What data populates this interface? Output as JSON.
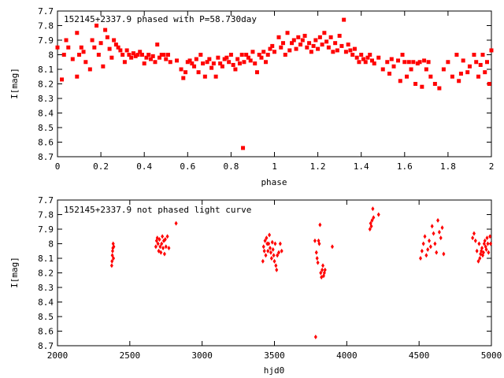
{
  "chart_data": [
    {
      "type": "scatter",
      "title": "152145+2337.9 phased with P=58.730day",
      "xlabel": "phase",
      "ylabel": "I[mag]",
      "xlim": [
        0,
        2
      ],
      "ylim": [
        8.7,
        7.7
      ],
      "y_inverted": true,
      "grid": false,
      "marker_color": "#ff0000",
      "xticks": [
        "0",
        "0.2",
        "0.4",
        "0.6",
        "0.8",
        "1",
        "1.2",
        "1.4",
        "1.6",
        "1.8",
        "2"
      ],
      "yticks": [
        "7.7",
        "7.8",
        "7.9",
        "8",
        "8.1",
        "8.2",
        "8.3",
        "8.4",
        "8.5",
        "8.6",
        "8.7"
      ],
      "xtick_values": [
        0,
        0.2,
        0.4,
        0.6,
        0.8,
        1,
        1.2,
        1.4,
        1.6,
        1.8,
        2
      ],
      "ytick_values": [
        7.7,
        7.8,
        7.9,
        8,
        8.1,
        8.2,
        8.3,
        8.4,
        8.5,
        8.6,
        8.7
      ],
      "x": [
        0.0,
        0.02,
        0.03,
        0.04,
        0.05,
        0.07,
        0.09,
        0.09,
        0.1,
        0.11,
        0.12,
        0.13,
        0.15,
        0.16,
        0.17,
        0.18,
        0.19,
        0.2,
        0.21,
        0.22,
        0.23,
        0.24,
        0.25,
        0.26,
        0.27,
        0.28,
        0.29,
        0.3,
        0.31,
        0.32,
        0.33,
        0.34,
        0.35,
        0.36,
        0.37,
        0.38,
        0.39,
        0.4,
        0.41,
        0.42,
        0.43,
        0.44,
        0.45,
        0.46,
        0.47,
        0.48,
        0.49,
        0.5,
        0.51,
        0.52,
        0.55,
        0.57,
        0.58,
        0.59,
        0.6,
        0.61,
        0.62,
        0.63,
        0.64,
        0.65,
        0.66,
        0.67,
        0.68,
        0.69,
        0.7,
        0.71,
        0.72,
        0.73,
        0.74,
        0.75,
        0.76,
        0.77,
        0.78,
        0.79,
        0.8,
        0.81,
        0.82,
        0.83,
        0.84,
        0.85,
        0.855,
        0.86,
        0.87,
        0.88,
        0.89,
        0.9,
        0.91,
        0.92,
        0.93,
        0.94,
        0.95,
        0.96,
        0.97,
        0.98,
        0.99,
        1.0,
        1.02,
        1.03,
        1.04,
        1.05,
        1.06,
        1.07,
        1.08,
        1.09,
        1.1,
        1.11,
        1.12,
        1.13,
        1.14,
        1.15,
        1.16,
        1.17,
        1.18,
        1.19,
        1.2,
        1.21,
        1.22,
        1.23,
        1.24,
        1.25,
        1.26,
        1.27,
        1.28,
        1.29,
        1.3,
        1.31,
        1.32,
        1.33,
        1.34,
        1.35,
        1.36,
        1.37,
        1.38,
        1.39,
        1.4,
        1.41,
        1.42,
        1.43,
        1.44,
        1.45,
        1.46,
        1.48,
        1.5,
        1.52,
        1.53,
        1.54,
        1.55,
        1.57,
        1.58,
        1.59,
        1.6,
        1.61,
        1.62,
        1.63,
        1.64,
        1.65,
        1.66,
        1.67,
        1.68,
        1.69,
        1.7,
        1.71,
        1.72,
        1.74,
        1.76,
        1.78,
        1.8,
        1.82,
        1.84,
        1.85,
        1.86,
        1.87,
        1.89,
        1.9,
        1.92,
        1.93,
        1.94,
        1.95,
        1.96,
        1.97,
        1.98,
        1.99,
        2.0
      ],
      "y": [
        7.95,
        8.17,
        8.0,
        7.9,
        7.95,
        8.03,
        8.15,
        7.85,
        8.0,
        7.95,
        7.98,
        8.05,
        8.1,
        7.9,
        7.95,
        7.8,
        8.0,
        7.92,
        8.08,
        7.83,
        7.88,
        7.96,
        8.02,
        7.9,
        7.93,
        7.95,
        7.97,
        8.0,
        8.05,
        7.97,
        8.0,
        8.02,
        7.99,
        8.01,
        8.0,
        7.98,
        8.0,
        8.06,
        8.02,
        8.0,
        8.03,
        8.01,
        8.05,
        7.93,
        8.02,
        8.0,
        8.0,
        8.03,
        8.0,
        8.05,
        8.04,
        8.1,
        8.16,
        8.12,
        8.05,
        8.04,
        8.06,
        8.08,
        8.03,
        8.12,
        8.0,
        8.06,
        8.15,
        8.05,
        8.03,
        8.09,
        8.06,
        8.15,
        8.02,
        8.06,
        8.08,
        8.03,
        8.02,
        8.05,
        8.0,
        8.07,
        8.1,
        8.03,
        8.06,
        8.0,
        8.64,
        8.05,
        8.0,
        8.02,
        8.04,
        7.98,
        8.06,
        8.12,
        8.0,
        8.02,
        7.98,
        8.05,
        8.0,
        7.96,
        7.94,
        7.98,
        7.88,
        7.95,
        7.92,
        8.0,
        7.85,
        7.97,
        7.92,
        7.9,
        7.96,
        7.88,
        7.93,
        7.9,
        7.87,
        7.95,
        7.92,
        7.98,
        7.94,
        7.9,
        7.96,
        7.88,
        7.93,
        7.85,
        7.91,
        7.95,
        7.88,
        7.98,
        7.92,
        7.97,
        7.87,
        7.94,
        7.76,
        7.98,
        7.93,
        7.97,
        8.0,
        7.96,
        8.02,
        8.05,
        8.0,
        8.03,
        8.05,
        8.02,
        8.0,
        8.04,
        8.06,
        8.02,
        8.1,
        8.05,
        8.13,
        8.03,
        8.08,
        8.04,
        8.18,
        8.0,
        8.05,
        8.15,
        8.05,
        8.1,
        8.05,
        8.2,
        8.06,
        8.05,
        8.22,
        8.04,
        8.1,
        8.05,
        8.15,
        8.2,
        8.23,
        8.1,
        8.05,
        8.15,
        8.0,
        8.18,
        8.13,
        8.04,
        8.12,
        8.08,
        8.0,
        8.05,
        8.15,
        8.07,
        8.0,
        8.12,
        8.05,
        8.2,
        7.97
      ]
    },
    {
      "type": "scatter",
      "title": "152145+2337.9 not phased light curve",
      "xlabel": "hjd0",
      "ylabel": "I[mag]",
      "xlim": [
        2000,
        5000
      ],
      "ylim": [
        8.7,
        7.7
      ],
      "y_inverted": true,
      "grid": false,
      "marker_color": "#ff0000",
      "xticks": [
        "2000",
        "2500",
        "3000",
        "3500",
        "4000",
        "4500",
        "5000"
      ],
      "yticks": [
        "7.7",
        "7.8",
        "7.9",
        "8",
        "8.1",
        "8.2",
        "8.3",
        "8.4",
        "8.5",
        "8.6",
        "8.7"
      ],
      "xtick_values": [
        2000,
        2500,
        3000,
        3500,
        4000,
        4500,
        5000
      ],
      "ytick_values": [
        7.7,
        7.8,
        7.9,
        8,
        8.1,
        8.2,
        8.3,
        8.4,
        8.5,
        8.6,
        8.7
      ],
      "x": [
        2375,
        2377,
        2379,
        2381,
        2383,
        2385,
        2387,
        2389,
        2680,
        2685,
        2690,
        2695,
        2700,
        2705,
        2710,
        2715,
        2720,
        2725,
        2730,
        2735,
        2740,
        2745,
        2750,
        2760,
        2770,
        2820,
        3420,
        3425,
        3430,
        3435,
        3440,
        3445,
        3450,
        3455,
        3460,
        3465,
        3470,
        3475,
        3480,
        3485,
        3490,
        3495,
        3500,
        3505,
        3510,
        3515,
        3520,
        3530,
        3540,
        3550,
        3780,
        3785,
        3790,
        3795,
        3800,
        3805,
        3810,
        3815,
        3820,
        3825,
        3830,
        3835,
        3840,
        3845,
        3850,
        3900,
        4160,
        4165,
        4170,
        4175,
        4180,
        4185,
        4220,
        4510,
        4520,
        4530,
        4540,
        4550,
        4560,
        4570,
        4580,
        4590,
        4600,
        4610,
        4620,
        4630,
        4640,
        4650,
        4660,
        4670,
        4870,
        4880,
        4890,
        4900,
        4910,
        4915,
        4920,
        4925,
        4930,
        4935,
        4940,
        4945,
        4950,
        4955,
        4960,
        4965,
        4970,
        4975,
        4980,
        4990,
        4995
      ],
      "y": [
        8.15,
        8.12,
        8.08,
        8.05,
        8.03,
        8.0,
        8.1,
        8.02,
        8.02,
        7.98,
        7.96,
        8.0,
        8.05,
        7.97,
        8.02,
        8.06,
        8.0,
        7.95,
        8.03,
        7.98,
        8.07,
        7.97,
        8.02,
        7.95,
        8.03,
        7.86,
        8.12,
        8.02,
        8.05,
        7.98,
        8.08,
        7.96,
        8.0,
        8.05,
        8.0,
        7.94,
        8.03,
        8.06,
        8.1,
        7.99,
        8.04,
        8.08,
        8.12,
        8.0,
        8.15,
        8.18,
        8.08,
        8.06,
        8.0,
        8.05,
        7.98,
        8.64,
        8.06,
        8.1,
        8.13,
        7.98,
        8.0,
        7.87,
        8.2,
        8.23,
        8.18,
        8.15,
        8.22,
        8.2,
        8.18,
        8.02,
        7.9,
        7.86,
        7.88,
        7.84,
        7.76,
        7.82,
        7.8,
        8.1,
        8.05,
        8.0,
        7.95,
        8.08,
        8.04,
        7.98,
        8.02,
        7.88,
        7.93,
        8.0,
        8.06,
        7.84,
        7.92,
        7.96,
        7.89,
        8.07,
        7.96,
        7.93,
        7.98,
        8.05,
        8.12,
        8.0,
        8.1,
        8.07,
        8.05,
        8.03,
        8.08,
        8.06,
        8.0,
        7.98,
        8.02,
        8.04,
        7.96,
        8.0,
        8.06,
        7.95,
        8.0
      ]
    }
  ]
}
